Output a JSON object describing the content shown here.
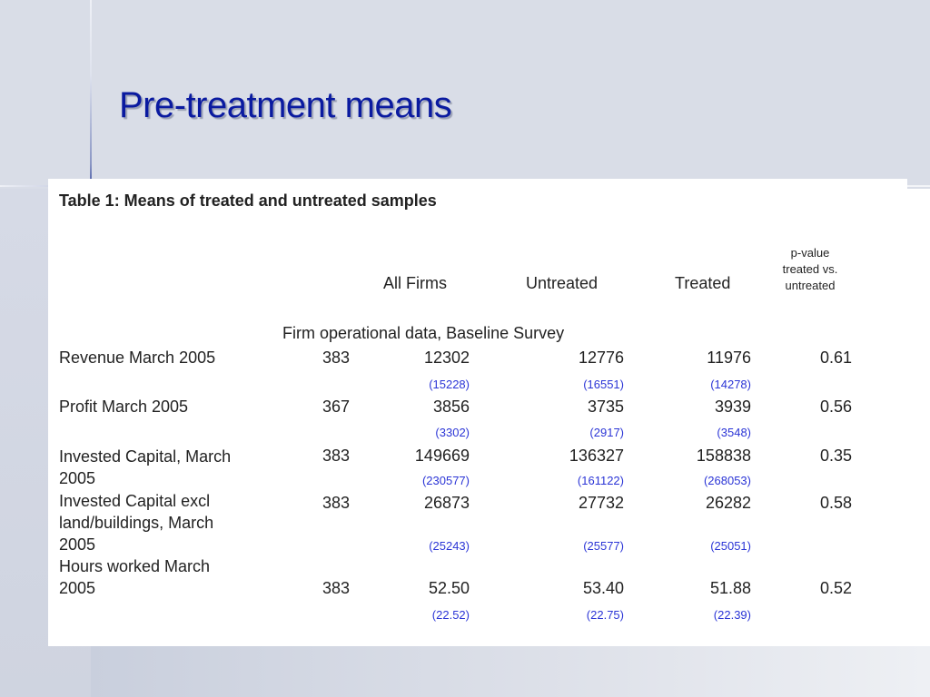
{
  "slide": {
    "title": "Pre-treatment means"
  },
  "table": {
    "caption": "Table 1: Means of treated and untreated samples",
    "headers": {
      "all_firms": "All Firms",
      "untreated": "Untreated",
      "treated": "Treated",
      "pvalue": [
        "p-value",
        "treated vs.",
        "untreated"
      ]
    },
    "section_label": "Firm operational data, Baseline Survey",
    "rows": [
      {
        "label": [
          "Revenue March 2005"
        ],
        "n": "383",
        "all": "12302",
        "untreated": "12776",
        "treated": "11976",
        "p": "0.61",
        "sd_all": "(15228)",
        "sd_untreated": "(16551)",
        "sd_treated": "(14278)"
      },
      {
        "label": [
          "Profit March 2005"
        ],
        "n": "367",
        "all": "3856",
        "untreated": "3735",
        "treated": "3939",
        "p": "0.56",
        "sd_all": "(3302)",
        "sd_untreated": "(2917)",
        "sd_treated": "(3548)"
      },
      {
        "label": [
          "Invested Capital, March",
          "2005"
        ],
        "n": "383",
        "all": "149669",
        "untreated": "136327",
        "treated": "158838",
        "p": "0.35",
        "sd_all": "(230577)",
        "sd_untreated": "(161122)",
        "sd_treated": "(268053)"
      },
      {
        "label": [
          "Invested Capital excl",
          "land/buildings, March",
          "2005"
        ],
        "n": "383",
        "all": "26873",
        "untreated": "27732",
        "treated": "26282",
        "p": "0.58",
        "sd_all": "(25243)",
        "sd_untreated": "(25577)",
        "sd_treated": "(25051)"
      },
      {
        "label": [
          "Hours worked March",
          "2005"
        ],
        "n": "383",
        "all": "52.50",
        "untreated": "53.40",
        "treated": "51.88",
        "p": "0.52",
        "sd_all": "(22.52)",
        "sd_untreated": "(22.75)",
        "sd_treated": "(22.39)"
      }
    ]
  }
}
